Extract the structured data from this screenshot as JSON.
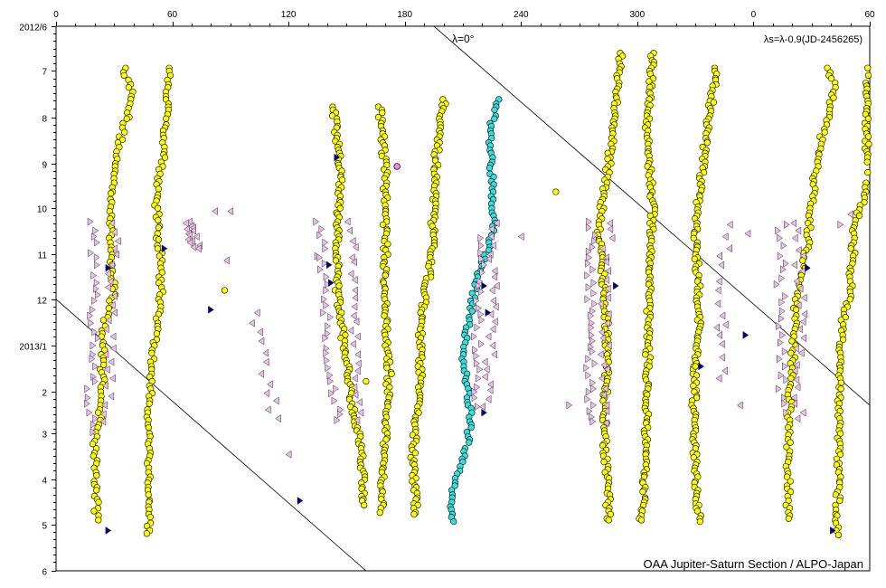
{
  "chart_data": {
    "type": "scatter",
    "title": "",
    "xlabel": "",
    "ylabel": "",
    "x_tick_labels": [
      "0",
      "60",
      "120",
      "180",
      "240",
      "300",
      "0",
      "60"
    ],
    "x_ticks_continuous": [
      0,
      60,
      120,
      180,
      240,
      300,
      360,
      420
    ],
    "xlim": [
      0,
      420
    ],
    "y_tick_labels": [
      "2012/6",
      "7",
      "8",
      "9",
      "10",
      "11",
      "12",
      "2013/1",
      "2",
      "3",
      "4",
      "5",
      "6"
    ],
    "ylim": [
      "2012-06-01",
      "2013-06-01"
    ],
    "annotations": {
      "lambda_zero": "λ=0°",
      "formula": "λs=λ-0.9(JD-2456265)",
      "credit": "OAA Jupiter-Saturn Section / ALPO-Japan"
    },
    "guide_lines": [
      {
        "label": "λ=0°",
        "points": [
          [
            195,
            "2012-06-01"
          ],
          [
            420,
            "2013-02-10"
          ]
        ]
      },
      {
        "label": "",
        "points": [
          [
            0,
            "2012-12-01"
          ],
          [
            160,
            "2013-06-01"
          ]
        ]
      }
    ],
    "colors": {
      "yellow_fill": "#ffff00",
      "cyan_fill": "#33e0e0",
      "magenta_fill": "#ee88ee",
      "pink_triangle": "#eebbee",
      "navy_triangle": "#000080",
      "axis": "#000000"
    },
    "series": [
      {
        "kind": "circle",
        "fill": "#ffff00",
        "tracks": [
          {
            "pts": [
              [
                35,
                "2012-06-29"
              ],
              [
                40,
                "2012-07-20"
              ],
              [
                35,
                "2012-08-07"
              ],
              [
                30,
                "2012-09-05"
              ],
              [
                28,
                "2012-10-20"
              ],
              [
                30,
                "2012-11-25"
              ],
              [
                24,
                "2012-12-24"
              ],
              [
                24,
                "2013-02-05"
              ],
              [
                20,
                "2013-03-10"
              ],
              [
                21,
                "2013-04-30"
              ]
            ],
            "n": 115,
            "spread": 1.3
          },
          {
            "pts": [
              [
                59,
                "2012-06-29"
              ],
              [
                57,
                "2012-07-25"
              ],
              [
                56,
                "2012-08-25"
              ],
              [
                52,
                "2012-09-20"
              ],
              [
                52,
                "2012-10-10"
              ],
              [
                54,
                "2012-11-05"
              ],
              [
                54,
                "2012-12-05"
              ],
              [
                50,
                "2013-01-05"
              ],
              [
                48,
                "2013-02-10"
              ],
              [
                48,
                "2013-03-15"
              ],
              [
                48,
                "2013-05-10"
              ]
            ],
            "n": 120,
            "spread": 1.3
          },
          {
            "pts": [
              [
                143,
                "2012-07-25"
              ],
              [
                147,
                "2012-09-10"
              ],
              [
                145,
                "2012-10-10"
              ],
              [
                145,
                "2012-11-25"
              ],
              [
                148,
                "2012-12-25"
              ],
              [
                153,
                "2013-02-10"
              ],
              [
                158,
                "2013-03-15"
              ],
              [
                159,
                "2013-04-20"
              ]
            ],
            "n": 130,
            "spread": 1.3
          },
          {
            "pts": [
              [
                167,
                "2012-07-25"
              ],
              [
                170,
                "2012-09-05"
              ],
              [
                170,
                "2012-12-20"
              ],
              [
                172,
                "2013-01-20"
              ],
              [
                170,
                "2013-02-25"
              ],
              [
                168,
                "2013-04-25"
              ]
            ],
            "n": 125,
            "spread": 1.3
          },
          {
            "pts": [
              [
                201,
                "2012-07-20"
              ],
              [
                197,
                "2012-08-15"
              ],
              [
                195,
                "2012-09-20"
              ],
              [
                194,
                "2012-11-05"
              ],
              [
                188,
                "2012-12-15"
              ],
              [
                188,
                "2013-01-20"
              ],
              [
                186,
                "2013-02-20"
              ],
              [
                184,
                "2013-03-20"
              ],
              [
                186,
                "2013-04-27"
              ]
            ],
            "n": 135,
            "spread": 1.3
          },
          {
            "pts": [
              [
                292,
                "2012-06-19"
              ],
              [
                285,
                "2012-09-05"
              ],
              [
                280,
                "2012-10-15"
              ],
              [
                283,
                "2012-11-25"
              ],
              [
                285,
                "2013-01-10"
              ],
              [
                283,
                "2013-02-15"
              ],
              [
                283,
                "2013-03-10"
              ],
              [
                285,
                "2013-04-10"
              ],
              [
                285,
                "2013-05-01"
              ]
            ],
            "n": 145,
            "spread": 1.3
          },
          {
            "pts": [
              [
                308,
                "2012-06-19"
              ],
              [
                305,
                "2012-08-10"
              ],
              [
                308,
                "2012-09-30"
              ],
              [
                306,
                "2012-12-05"
              ],
              [
                305,
                "2013-02-05"
              ],
              [
                303,
                "2013-04-15"
              ],
              [
                302,
                "2013-05-01"
              ]
            ],
            "n": 150,
            "spread": 1.3
          },
          {
            "pts": [
              [
                341,
                "2012-06-29"
              ],
              [
                336,
                "2012-08-10"
              ],
              [
                333,
                "2012-09-10"
              ],
              [
                330,
                "2012-10-20"
              ],
              [
                332,
                "2012-12-10"
              ],
              [
                330,
                "2013-01-15"
              ],
              [
                329,
                "2013-02-20"
              ],
              [
                330,
                "2013-03-25"
              ],
              [
                332,
                "2013-05-01"
              ]
            ],
            "n": 145,
            "spread": 1.3
          },
          {
            "pts": [
              [
                399,
                "2012-06-29"
              ],
              [
                402,
                "2012-07-15"
              ],
              [
                396,
                "2012-08-10"
              ],
              [
                391,
                "2012-09-15"
              ],
              [
                388,
                "2012-10-25"
              ],
              [
                382,
                "2012-12-05"
              ],
              [
                380,
                "2013-01-15"
              ],
              [
                378,
                "2013-02-20"
              ],
              [
                378,
                "2013-03-25"
              ],
              [
                378,
                "2013-04-30"
              ]
            ],
            "n": 120,
            "spread": 1.3
          },
          {
            "pts": [
              [
                419,
                "2012-06-29"
              ],
              [
                418,
                "2012-08-15"
              ],
              [
                420,
                "2012-09-10"
              ],
              [
                412,
                "2012-10-15"
              ],
              [
                410,
                "2012-11-25"
              ],
              [
                406,
                "2012-12-15"
              ],
              [
                405,
                "2013-01-15"
              ],
              [
                404,
                "2013-02-20"
              ],
              [
                404,
                "2013-03-25"
              ],
              [
                403,
                "2013-05-10"
              ]
            ],
            "n": 130,
            "spread": 1.3
          }
        ],
        "extra": [
          [
            87,
            "2012-11-25"
          ],
          [
            160,
            "2013-01-25"
          ],
          [
            176,
            "2012-09-03"
          ],
          [
            258,
            "2012-09-20"
          ],
          [
            330,
            "2013-01-15"
          ]
        ]
      },
      {
        "kind": "circle",
        "fill": "#33e0e0",
        "tracks": [
          {
            "pts": [
              [
                228,
                "2012-07-20"
              ],
              [
                224,
                "2012-08-10"
              ],
              [
                225,
                "2012-09-10"
              ],
              [
                226,
                "2012-10-10"
              ],
              [
                224,
                "2012-10-25"
              ],
              [
                218,
                "2012-11-15"
              ],
              [
                213,
                "2012-12-15"
              ],
              [
                210,
                "2013-01-05"
              ],
              [
                212,
                "2013-01-25"
              ],
              [
                214,
                "2013-02-20"
              ],
              [
                212,
                "2013-03-10"
              ],
              [
                205,
                "2013-04-05"
              ],
              [
                203,
                "2013-04-20"
              ],
              [
                205,
                "2013-05-01"
              ]
            ],
            "n": 110,
            "spread": 1.1
          }
        ],
        "extra": []
      },
      {
        "kind": "tri-right",
        "fill": "#eebbee",
        "tracks": [
          {
            "pts": [
              [
                19,
                "2012-10-10"
              ],
              [
                20,
                "2012-12-10"
              ],
              [
                18,
                "2013-02-20"
              ],
              [
                20,
                "2013-03-05"
              ]
            ],
            "n": 30,
            "spread": 2.5
          },
          {
            "pts": [
              [
                136,
                "2012-10-10"
              ],
              [
                139,
                "2012-11-30"
              ],
              [
                142,
                "2013-01-10"
              ],
              [
                146,
                "2013-02-25"
              ]
            ],
            "n": 30,
            "spread": 2.5
          },
          {
            "pts": [
              [
                219,
                "2012-10-20"
              ],
              [
                218,
                "2012-12-20"
              ],
              [
                215,
                "2013-02-15"
              ]
            ],
            "n": 25,
            "spread": 2.5
          },
          {
            "pts": [
              [
                276,
                "2012-10-10"
              ],
              [
                276,
                "2012-12-30"
              ],
              [
                275,
                "2013-02-25"
              ]
            ],
            "n": 35,
            "spread": 2.5
          },
          {
            "pts": [
              [
                375,
                "2012-10-10"
              ],
              [
                374,
                "2012-12-20"
              ],
              [
                375,
                "2013-02-20"
              ]
            ],
            "n": 25,
            "spread": 2.5
          }
        ],
        "extra": [
          [
            0,
            "2012-10-03"
          ],
          [
            265,
            "2013-02-10"
          ],
          [
            405,
            "2012-10-12"
          ],
          [
            136,
            "2012-11-03"
          ]
        ]
      },
      {
        "kind": "tri-left",
        "fill": "#eebbee",
        "tracks": [
          {
            "pts": [
              [
                30,
                "2012-10-10"
              ],
              [
                28,
                "2012-12-20"
              ],
              [
                26,
                "2013-02-25"
              ]
            ],
            "n": 25,
            "spread": 2.5
          },
          {
            "pts": [
              [
                68,
                "2012-10-10"
              ],
              [
                72,
                "2012-10-30"
              ]
            ],
            "n": 15,
            "spread": 3
          },
          {
            "pts": [
              [
                103,
                "2012-12-10"
              ],
              [
                108,
                "2013-01-20"
              ],
              [
                114,
                "2013-02-25"
              ]
            ],
            "n": 12,
            "spread": 3
          },
          {
            "pts": [
              [
                152,
                "2012-10-10"
              ],
              [
                153,
                "2012-12-20"
              ],
              [
                158,
                "2013-02-25"
              ]
            ],
            "n": 25,
            "spread": 2.5
          },
          {
            "pts": [
              [
                226,
                "2012-10-10"
              ],
              [
                225,
                "2012-12-20"
              ],
              [
                221,
                "2013-02-15"
              ]
            ],
            "n": 25,
            "spread": 2.5
          },
          {
            "pts": [
              [
                285,
                "2012-10-10"
              ],
              [
                283,
                "2012-12-20"
              ],
              [
                284,
                "2013-02-25"
              ]
            ],
            "n": 25,
            "spread": 2.5
          },
          {
            "pts": [
              [
                346,
                "2012-10-10"
              ],
              [
                344,
                "2012-12-20"
              ],
              [
                342,
                "2013-01-30"
              ]
            ],
            "n": 15,
            "spread": 3
          },
          {
            "pts": [
              [
                383,
                "2012-10-10"
              ],
              [
                384,
                "2012-12-20"
              ],
              [
                383,
                "2013-02-25"
              ]
            ],
            "n": 25,
            "spread": 2.5
          }
        ],
        "extra": [
          [
            90,
            "2012-10-03"
          ],
          [
            82,
            "2012-10-03"
          ],
          [
            120,
            "2013-03-15"
          ],
          [
            88,
            "2012-11-05"
          ],
          [
            240,
            "2012-10-20"
          ],
          [
            353,
            "2013-02-10"
          ],
          [
            341,
            "2012-12-20"
          ],
          [
            410,
            "2012-10-05"
          ],
          [
            357,
            "2012-10-18"
          ]
        ]
      },
      {
        "kind": "tri-right",
        "fill": "#000080",
        "tracks": [],
        "extra": [
          [
            27,
            "2012-11-10"
          ],
          [
            56,
            "2012-10-28"
          ],
          [
            80,
            "2012-12-08"
          ],
          [
            27,
            "2013-05-05"
          ],
          [
            126,
            "2013-04-15"
          ],
          [
            142,
            "2012-11-20"
          ],
          [
            141,
            "2012-11-08"
          ],
          [
            145,
            "2012-08-28"
          ],
          [
            221,
            "2013-02-15"
          ],
          [
            223,
            "2012-12-10"
          ],
          [
            289,
            "2012-11-22"
          ],
          [
            333,
            "2013-01-15"
          ],
          [
            356,
            "2012-12-25"
          ],
          [
            388,
            "2012-11-10"
          ],
          [
            421,
            "2012-10-28"
          ],
          [
            401,
            "2013-05-05"
          ],
          [
            221,
            "2012-11-22"
          ]
        ]
      },
      {
        "kind": "circle",
        "fill": "#ee88ee",
        "tracks": [],
        "extra": [
          [
            176,
            "2012-09-03"
          ]
        ]
      }
    ]
  }
}
